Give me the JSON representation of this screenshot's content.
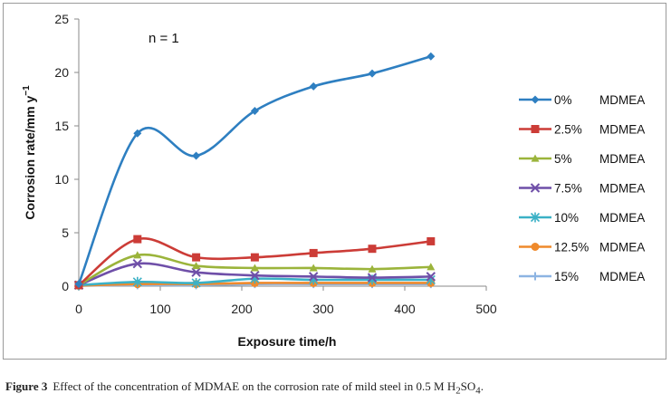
{
  "chart_data": {
    "type": "line",
    "title": "",
    "annotation": "n = 1",
    "xlabel": "Exposure time/h",
    "ylabel_main": "Corrosion rate/mm y",
    "ylabel_sup": "−1",
    "xlim": [
      0,
      500
    ],
    "ylim": [
      0,
      25
    ],
    "xticks": [
      0,
      100,
      200,
      300,
      400,
      500
    ],
    "yticks": [
      0,
      5,
      10,
      15,
      20,
      25
    ],
    "grid": false,
    "legend_position": "right",
    "x": [
      0,
      72,
      144,
      216,
      288,
      360,
      432
    ],
    "series": [
      {
        "name": "0%",
        "suffix": "MDMEA",
        "color": "#2e7fc1",
        "marker": "diamond",
        "values": [
          0.2,
          14.3,
          12.2,
          16.4,
          18.7,
          19.9,
          21.5
        ]
      },
      {
        "name": "2.5%",
        "suffix": "MDMEA",
        "color": "#cc3c37",
        "marker": "square",
        "values": [
          0.1,
          4.4,
          2.7,
          2.7,
          3.1,
          3.5,
          4.2
        ]
      },
      {
        "name": "5%",
        "suffix": "MDMEA",
        "color": "#9bb43b",
        "marker": "triangle",
        "values": [
          0.1,
          2.9,
          1.9,
          1.7,
          1.7,
          1.6,
          1.8
        ]
      },
      {
        "name": "7.5%",
        "suffix": "MDMEA",
        "color": "#6f4fa8",
        "marker": "x",
        "values": [
          0.1,
          2.1,
          1.3,
          1.0,
          0.9,
          0.8,
          0.9
        ]
      },
      {
        "name": "10%",
        "suffix": "MDMEA",
        "color": "#3bb1c6",
        "marker": "star",
        "values": [
          0.1,
          0.4,
          0.3,
          0.7,
          0.6,
          0.6,
          0.6
        ]
      },
      {
        "name": "12.5%",
        "suffix": "MDMEA",
        "color": "#ef8a2c",
        "marker": "circle",
        "values": [
          0.05,
          0.2,
          0.2,
          0.3,
          0.3,
          0.3,
          0.3
        ]
      },
      {
        "name": "15%",
        "suffix": "MDMEA",
        "color": "#8db4e2",
        "marker": "plus",
        "values": [
          0.05,
          0.1,
          0.1,
          0.2,
          0.2,
          0.2,
          0.2
        ]
      }
    ]
  },
  "caption": {
    "label": "Figure 3",
    "text_before": "Effect of the concentration of MDMAE on the corrosion rate of mild steel in 0.5 M H",
    "sub1": "2",
    "mid": "SO",
    "sub2": "4",
    "end": "."
  }
}
